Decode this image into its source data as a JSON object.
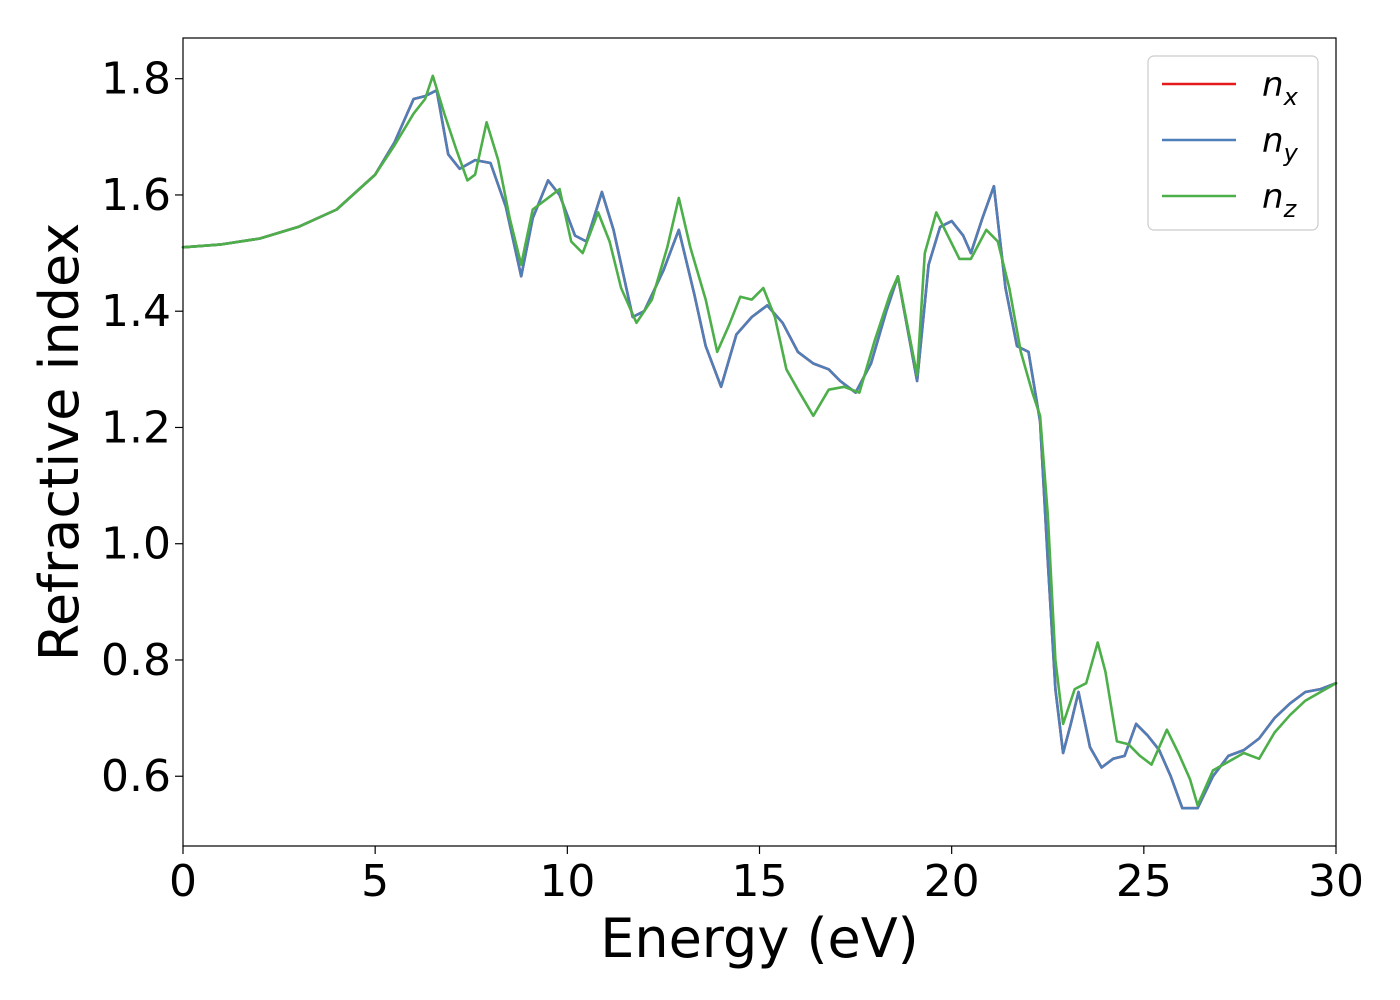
{
  "chart_data": {
    "type": "line",
    "xlabel": "Energy (eV)",
    "ylabel": "Refractive index",
    "xlim": [
      0,
      30
    ],
    "ylim": [
      0.48,
      1.87
    ],
    "xticks": [
      0,
      5,
      10,
      15,
      20,
      25,
      30
    ],
    "xtick_labels": [
      "0",
      "5",
      "10",
      "15",
      "20",
      "25",
      "30"
    ],
    "yticks": [
      0.6,
      0.8,
      1.0,
      1.2,
      1.4,
      1.6,
      1.8
    ],
    "ytick_labels": [
      "0.6",
      "0.8",
      "1.0",
      "1.2",
      "1.4",
      "1.6",
      "1.8"
    ],
    "grid": false,
    "legend_position": "top-right",
    "series": [
      {
        "name": "n",
        "subscript": "x",
        "color": "#e41a1c",
        "x": [
          0,
          1,
          2,
          3,
          4,
          5,
          5.5,
          6.0,
          6.3,
          6.6,
          6.9,
          7.2,
          7.6,
          8.0,
          8.4,
          8.8,
          9.1,
          9.5,
          9.8,
          10.2,
          10.5,
          10.9,
          11.2,
          11.7,
          12.0,
          12.5,
          12.9,
          13.3,
          13.6,
          14.0,
          14.4,
          14.8,
          15.2,
          15.6,
          16.0,
          16.4,
          16.8,
          17.1,
          17.5,
          17.9,
          18.3,
          18.6,
          19.1,
          19.4,
          19.7,
          20.0,
          20.3,
          20.5,
          20.8,
          21.1,
          21.4,
          21.7,
          22.0,
          22.3,
          22.5,
          22.7,
          22.9,
          23.1,
          23.3,
          23.6,
          23.9,
          24.2,
          24.5,
          24.8,
          25.1,
          25.4,
          25.7,
          26.0,
          26.4,
          26.8,
          27.2,
          27.6,
          28.0,
          28.4,
          28.8,
          29.2,
          29.6,
          30.0
        ],
        "values": [
          1.51,
          1.515,
          1.525,
          1.545,
          1.575,
          1.635,
          1.69,
          1.765,
          1.77,
          1.78,
          1.67,
          1.645,
          1.66,
          1.655,
          1.58,
          1.46,
          1.56,
          1.625,
          1.6,
          1.53,
          1.52,
          1.605,
          1.54,
          1.39,
          1.4,
          1.47,
          1.54,
          1.43,
          1.34,
          1.27,
          1.36,
          1.39,
          1.41,
          1.38,
          1.33,
          1.31,
          1.3,
          1.28,
          1.26,
          1.31,
          1.4,
          1.46,
          1.28,
          1.48,
          1.545,
          1.555,
          1.53,
          1.5,
          1.56,
          1.615,
          1.44,
          1.34,
          1.33,
          1.21,
          0.97,
          0.75,
          0.64,
          0.69,
          0.745,
          0.65,
          0.615,
          0.63,
          0.635,
          0.69,
          0.67,
          0.645,
          0.6,
          0.545,
          0.545,
          0.6,
          0.635,
          0.645,
          0.665,
          0.7,
          0.725,
          0.745,
          0.75,
          0.76
        ]
      },
      {
        "name": "n",
        "subscript": "y",
        "color": "#4f7fb8",
        "x": [
          0,
          1,
          2,
          3,
          4,
          5,
          5.5,
          6.0,
          6.3,
          6.6,
          6.9,
          7.2,
          7.6,
          8.0,
          8.4,
          8.8,
          9.1,
          9.5,
          9.8,
          10.2,
          10.5,
          10.9,
          11.2,
          11.7,
          12.0,
          12.5,
          12.9,
          13.3,
          13.6,
          14.0,
          14.4,
          14.8,
          15.2,
          15.6,
          16.0,
          16.4,
          16.8,
          17.1,
          17.5,
          17.9,
          18.3,
          18.6,
          19.1,
          19.4,
          19.7,
          20.0,
          20.3,
          20.5,
          20.8,
          21.1,
          21.4,
          21.7,
          22.0,
          22.3,
          22.5,
          22.7,
          22.9,
          23.1,
          23.3,
          23.6,
          23.9,
          24.2,
          24.5,
          24.8,
          25.1,
          25.4,
          25.7,
          26.0,
          26.4,
          26.8,
          27.2,
          27.6,
          28.0,
          28.4,
          28.8,
          29.2,
          29.6,
          30.0
        ],
        "values": [
          1.51,
          1.515,
          1.525,
          1.545,
          1.575,
          1.635,
          1.69,
          1.765,
          1.77,
          1.78,
          1.67,
          1.645,
          1.66,
          1.655,
          1.58,
          1.46,
          1.56,
          1.625,
          1.6,
          1.53,
          1.52,
          1.605,
          1.54,
          1.39,
          1.4,
          1.47,
          1.54,
          1.43,
          1.34,
          1.27,
          1.36,
          1.39,
          1.41,
          1.38,
          1.33,
          1.31,
          1.3,
          1.28,
          1.26,
          1.31,
          1.4,
          1.46,
          1.28,
          1.48,
          1.545,
          1.555,
          1.53,
          1.5,
          1.56,
          1.615,
          1.44,
          1.34,
          1.33,
          1.21,
          0.97,
          0.75,
          0.64,
          0.69,
          0.745,
          0.65,
          0.615,
          0.63,
          0.635,
          0.69,
          0.67,
          0.645,
          0.6,
          0.545,
          0.545,
          0.6,
          0.635,
          0.645,
          0.665,
          0.7,
          0.725,
          0.745,
          0.75,
          0.76
        ]
      },
      {
        "name": "n",
        "subscript": "z",
        "color": "#4daf4a",
        "x": [
          0,
          1,
          2,
          3,
          4,
          5,
          5.5,
          6.0,
          6.3,
          6.5,
          6.8,
          7.1,
          7.4,
          7.6,
          7.9,
          8.2,
          8.5,
          8.8,
          9.1,
          9.5,
          9.8,
          10.1,
          10.4,
          10.8,
          11.1,
          11.4,
          11.8,
          12.2,
          12.6,
          12.9,
          13.2,
          13.6,
          13.9,
          14.2,
          14.5,
          14.8,
          15.1,
          15.4,
          15.7,
          16.0,
          16.4,
          16.8,
          17.2,
          17.6,
          18.0,
          18.4,
          18.6,
          19.1,
          19.3,
          19.6,
          19.9,
          20.2,
          20.5,
          20.9,
          21.2,
          21.5,
          21.8,
          22.1,
          22.3,
          22.5,
          22.7,
          22.9,
          23.2,
          23.5,
          23.8,
          24.0,
          24.3,
          24.6,
          24.9,
          25.2,
          25.6,
          25.9,
          26.2,
          26.4,
          26.8,
          27.2,
          27.6,
          28.0,
          28.4,
          28.8,
          29.2,
          29.6,
          30.0
        ],
        "values": [
          1.51,
          1.515,
          1.525,
          1.545,
          1.575,
          1.635,
          1.685,
          1.74,
          1.765,
          1.805,
          1.74,
          1.68,
          1.625,
          1.635,
          1.725,
          1.66,
          1.56,
          1.48,
          1.575,
          1.595,
          1.61,
          1.52,
          1.5,
          1.57,
          1.52,
          1.44,
          1.38,
          1.42,
          1.51,
          1.595,
          1.51,
          1.42,
          1.33,
          1.375,
          1.425,
          1.42,
          1.44,
          1.39,
          1.3,
          1.265,
          1.22,
          1.265,
          1.27,
          1.26,
          1.35,
          1.43,
          1.46,
          1.29,
          1.5,
          1.57,
          1.53,
          1.49,
          1.49,
          1.54,
          1.52,
          1.44,
          1.33,
          1.26,
          1.22,
          1.05,
          0.8,
          0.69,
          0.75,
          0.76,
          0.83,
          0.78,
          0.66,
          0.655,
          0.635,
          0.62,
          0.68,
          0.64,
          0.595,
          0.55,
          0.61,
          0.625,
          0.64,
          0.63,
          0.675,
          0.705,
          0.73,
          0.745,
          0.76
        ]
      }
    ]
  }
}
